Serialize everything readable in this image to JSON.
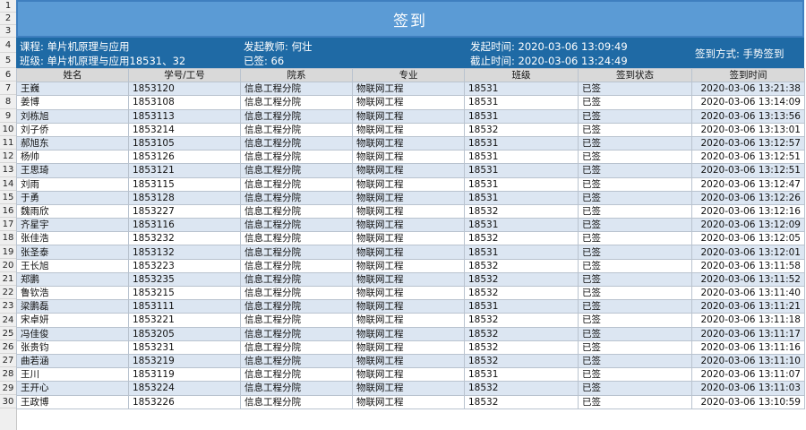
{
  "sheet": {
    "title": "签到",
    "row_numbers": [
      "1",
      "2",
      "3",
      "4",
      "5",
      "6",
      "7",
      "8",
      "9",
      "10",
      "11",
      "12",
      "13",
      "14",
      "15",
      "16",
      "17",
      "18",
      "19",
      "20",
      "21",
      "22",
      "23",
      "24",
      "25",
      "26",
      "27",
      "28",
      "29",
      "30"
    ]
  },
  "info": {
    "course_label": "课程:",
    "course_value": "单片机原理与应用",
    "class_label": "班级:",
    "class_value": "单片机原理与应用18531、32",
    "teacher_label": "发起教师:",
    "teacher_value": "何壮",
    "signed_label": "已签:",
    "signed_value": "66",
    "start_label": "发起时间:",
    "start_value": "2020-03-06 13:09:49",
    "end_label": "截止时间:",
    "end_value": "2020-03-06 13:24:49",
    "method_label": "签到方式:",
    "method_value": "手势签到"
  },
  "table": {
    "headers": [
      "姓名",
      "学号/工号",
      "院系",
      "专业",
      "班级",
      "签到状态",
      "签到时间"
    ],
    "rows": [
      [
        "王巍",
        "1853120",
        "信息工程分院",
        "物联网工程",
        "18531",
        "已签",
        "2020-03-06 13:21:38"
      ],
      [
        "姜博",
        "1853108",
        "信息工程分院",
        "物联网工程",
        "18531",
        "已签",
        "2020-03-06 13:14:09"
      ],
      [
        "刘栋旭",
        "1853113",
        "信息工程分院",
        "物联网工程",
        "18531",
        "已签",
        "2020-03-06 13:13:56"
      ],
      [
        "刘子侨",
        "1853214",
        "信息工程分院",
        "物联网工程",
        "18532",
        "已签",
        "2020-03-06 13:13:01"
      ],
      [
        "郝旭东",
        "1853105",
        "信息工程分院",
        "物联网工程",
        "18531",
        "已签",
        "2020-03-06 13:12:57"
      ],
      [
        "杨帅",
        "1853126",
        "信息工程分院",
        "物联网工程",
        "18531",
        "已签",
        "2020-03-06 13:12:51"
      ],
      [
        "王思琦",
        "1853121",
        "信息工程分院",
        "物联网工程",
        "18531",
        "已签",
        "2020-03-06 13:12:51"
      ],
      [
        "刘雨",
        "1853115",
        "信息工程分院",
        "物联网工程",
        "18531",
        "已签",
        "2020-03-06 13:12:47"
      ],
      [
        "于勇",
        "1853128",
        "信息工程分院",
        "物联网工程",
        "18531",
        "已签",
        "2020-03-06 13:12:26"
      ],
      [
        "魏雨欣",
        "1853227",
        "信息工程分院",
        "物联网工程",
        "18532",
        "已签",
        "2020-03-06 13:12:16"
      ],
      [
        "齐星宇",
        "1853116",
        "信息工程分院",
        "物联网工程",
        "18531",
        "已签",
        "2020-03-06 13:12:09"
      ],
      [
        "张佳浩",
        "1853232",
        "信息工程分院",
        "物联网工程",
        "18532",
        "已签",
        "2020-03-06 13:12:05"
      ],
      [
        "张圣泰",
        "1853132",
        "信息工程分院",
        "物联网工程",
        "18531",
        "已签",
        "2020-03-06 13:12:01"
      ],
      [
        "王长旭",
        "1853223",
        "信息工程分院",
        "物联网工程",
        "18532",
        "已签",
        "2020-03-06 13:11:58"
      ],
      [
        "郑鹏",
        "1853235",
        "信息工程分院",
        "物联网工程",
        "18532",
        "已签",
        "2020-03-06 13:11:52"
      ],
      [
        "鲁钦浩",
        "1853215",
        "信息工程分院",
        "物联网工程",
        "18532",
        "已签",
        "2020-03-06 13:11:40"
      ],
      [
        "梁鹏磊",
        "1853111",
        "信息工程分院",
        "物联网工程",
        "18531",
        "已签",
        "2020-03-06 13:11:21"
      ],
      [
        "宋卓妍",
        "1853221",
        "信息工程分院",
        "物联网工程",
        "18532",
        "已签",
        "2020-03-06 13:11:18"
      ],
      [
        "冯佳俊",
        "1853205",
        "信息工程分院",
        "物联网工程",
        "18532",
        "已签",
        "2020-03-06 13:11:17"
      ],
      [
        "张贵钧",
        "1853231",
        "信息工程分院",
        "物联网工程",
        "18532",
        "已签",
        "2020-03-06 13:11:16"
      ],
      [
        "曲若涵",
        "1853219",
        "信息工程分院",
        "物联网工程",
        "18532",
        "已签",
        "2020-03-06 13:11:10"
      ],
      [
        "王川",
        "1853119",
        "信息工程分院",
        "物联网工程",
        "18531",
        "已签",
        "2020-03-06 13:11:07"
      ],
      [
        "王开心",
        "1853224",
        "信息工程分院",
        "物联网工程",
        "18532",
        "已签",
        "2020-03-06 13:11:03"
      ],
      [
        "王政博",
        "1853226",
        "信息工程分院",
        "物联网工程",
        "18532",
        "已签",
        "2020-03-06 13:10:59"
      ]
    ]
  },
  "colors": {
    "title_band": "#5b9bd5",
    "info_band": "#1f6aa5",
    "row_alt": "#dce6f2",
    "header_bg": "#d9d9d9"
  }
}
